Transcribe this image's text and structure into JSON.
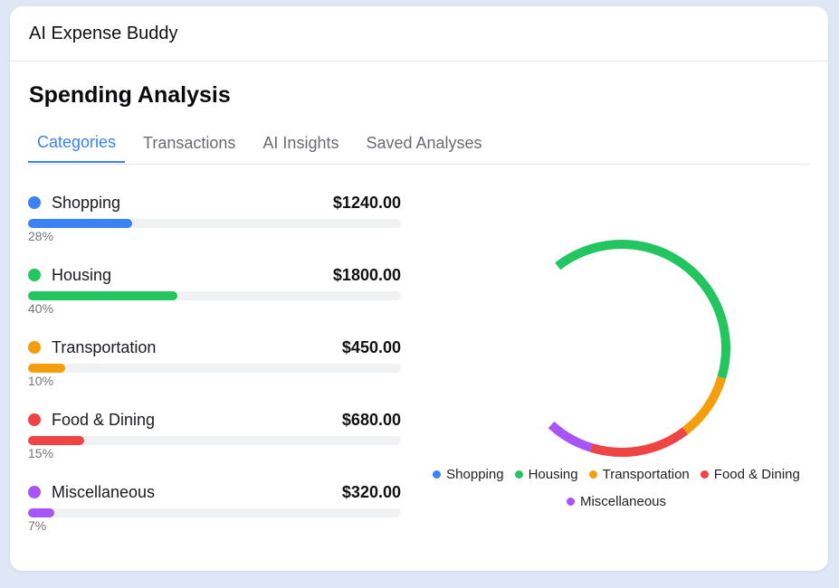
{
  "app": {
    "title": "AI Expense Buddy"
  },
  "page": {
    "title": "Spending Analysis"
  },
  "tabs": [
    {
      "label": "Categories",
      "active": true
    },
    {
      "label": "Transactions",
      "active": false
    },
    {
      "label": "AI Insights",
      "active": false
    },
    {
      "label": "Saved Analyses",
      "active": false
    }
  ],
  "categories": [
    {
      "name": "Shopping",
      "amount": "$1240.00",
      "percent_label": "28%",
      "percent": 28,
      "color": "#3b82f6"
    },
    {
      "name": "Housing",
      "amount": "$1800.00",
      "percent_label": "40%",
      "percent": 40,
      "color": "#22c55e"
    },
    {
      "name": "Transportation",
      "amount": "$450.00",
      "percent_label": "10%",
      "percent": 10,
      "color": "#f59e0b"
    },
    {
      "name": "Food & Dining",
      "amount": "$680.00",
      "percent_label": "15%",
      "percent": 15,
      "color": "#ef4444"
    },
    {
      "name": "Miscellaneous",
      "amount": "$320.00",
      "percent_label": "7%",
      "percent": 7,
      "color": "#a855f7"
    }
  ],
  "chart_data": {
    "type": "pie",
    "categories": [
      "Shopping",
      "Housing",
      "Transportation",
      "Food & Dining",
      "Miscellaneous"
    ],
    "values": [
      1240,
      1800,
      450,
      680,
      320
    ],
    "colors": [
      "#3b82f6",
      "#22c55e",
      "#f59e0b",
      "#ef4444",
      "#a855f7"
    ],
    "legend": "bottom",
    "title": ""
  }
}
